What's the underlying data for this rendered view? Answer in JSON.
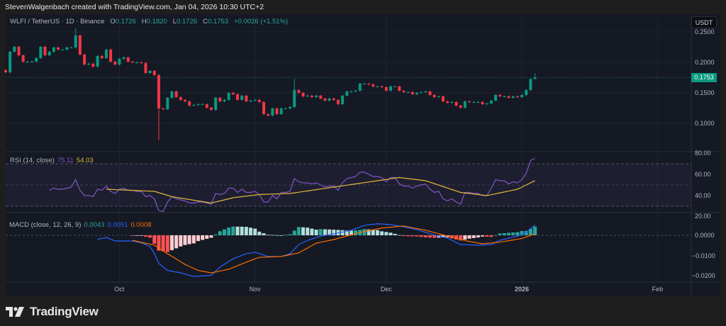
{
  "credit": "StevenWalgenbach created with TradingView.com, Jan 04, 2026 10:30 UTC+2",
  "symbol_title": "WLFI / TetherUS · 1D · Binance",
  "ohlc": {
    "o_label": "O",
    "o": "0.1726",
    "h_label": "H",
    "h": "0.1820",
    "l_label": "L",
    "l": "0.1726",
    "c_label": "C",
    "c": "0.1753",
    "change": "+0.0026 (+1.51%)"
  },
  "currency_button": "USDT",
  "last_price_label": "0.1753",
  "rsi_legend": {
    "label": "RSI (14, close)",
    "value": "75.11",
    "ma_value": "54.03"
  },
  "macd_legend": {
    "label": "MACD (close, 12, 26, 9)",
    "hist": "0.0043",
    "macd": "0.0051",
    "signal": "0.0008"
  },
  "logo_text": "TradingView",
  "colors": {
    "up": "#089981",
    "down": "#f23645",
    "rsi": "#7e57c2",
    "rsi_ma": "#e0b63a",
    "macd": "#2962ff",
    "signal": "#ff6d00",
    "hist_up_strong": "#26a69a",
    "hist_up_weak": "#b2dfdb",
    "hist_down_strong": "#ff5252",
    "hist_down_weak": "#ffcdd2"
  },
  "chart_data": [
    {
      "type": "candlestick",
      "interval": "1D",
      "start_date": "2025-09-05",
      "first_open": 0.187,
      "closes": [
        0.1837,
        0.2174,
        0.2256,
        0.2116,
        0.2012,
        0.2012,
        0.2012,
        0.207,
        0.2256,
        0.2116,
        0.2174,
        0.2244,
        0.2209,
        0.2209,
        0.2244,
        0.2244,
        0.2442,
        0.2128,
        0.1965,
        0.1977,
        0.193,
        0.2105,
        0.207,
        0.2209,
        0.2012,
        0.1965,
        0.2058,
        0.2081,
        0.2012,
        0.2,
        0.2,
        0.1988,
        0.1826,
        0.186,
        0.1791,
        0.1244,
        0.1232,
        0.1419,
        0.1523,
        0.143,
        0.1384,
        0.136,
        0.1291,
        0.1302,
        0.1314,
        0.1314,
        0.1256,
        0.1221,
        0.1419,
        0.136,
        0.1384,
        0.15,
        0.1477,
        0.1384,
        0.1453,
        0.136,
        0.1372,
        0.1384,
        0.1349,
        0.1151,
        0.1128,
        0.1244,
        0.1151,
        0.1244,
        0.1244,
        0.1267,
        0.1546,
        0.15,
        0.1442,
        0.1453,
        0.143,
        0.1453,
        0.1407,
        0.1372,
        0.1407,
        0.1384,
        0.1314,
        0.1453,
        0.1523,
        0.1523,
        0.1535,
        0.1651,
        0.1651,
        0.1639,
        0.1605,
        0.1605,
        0.1593,
        0.1535,
        0.1605,
        0.1605,
        0.1535,
        0.1512,
        0.1512,
        0.1477,
        0.15,
        0.1512,
        0.1523,
        0.1465,
        0.143,
        0.1442,
        0.136,
        0.1337,
        0.1349,
        0.1291,
        0.1256,
        0.136,
        0.1349,
        0.1349,
        0.1349,
        0.1314,
        0.1326,
        0.1372,
        0.1465,
        0.1442,
        0.1442,
        0.1419,
        0.1442,
        0.143,
        0.1465,
        0.1546,
        0.1726,
        0.1753
      ],
      "extremes": [
        {
          "date": "2025-09-21",
          "high": 0.2558
        },
        {
          "date": "2025-10-10",
          "low": 0.072
        },
        {
          "date": "2025-11-10",
          "high": 0.1733
        },
        {
          "date": "2026-01-04",
          "high": 0.182,
          "low": 0.1726
        }
      ],
      "ylim": [
        0.08,
        0.26
      ],
      "y_ticks": [
        "0.2500",
        "0.2000",
        "0.1500",
        "0.1000"
      ],
      "last_price": 0.1753,
      "x_ticks": [
        {
          "label": "Oct",
          "date": "2025-10-01"
        },
        {
          "label": "Nov",
          "date": "2025-11-01"
        },
        {
          "label": "Dec",
          "date": "2025-12-01"
        },
        {
          "label": "2026",
          "date": "2026-01-01"
        },
        {
          "label": "Feb",
          "date": "2026-02-01"
        }
      ],
      "grid": true
    },
    {
      "type": "line",
      "name": "RSI (14, close)",
      "ylim": [
        20,
        80
      ],
      "y_ticks": [
        "80.00",
        "60.00",
        "40.00",
        "20.00"
      ],
      "bands": {
        "upper": 70,
        "middle": 50,
        "lower": 30
      },
      "rsi_start_date": "2025-09-15",
      "rsi": [
        45,
        47,
        46,
        46,
        47,
        48,
        55,
        45,
        40,
        40,
        39,
        46,
        45,
        49,
        44,
        42,
        46,
        47,
        45,
        45,
        44,
        44,
        39,
        40,
        37,
        26,
        25,
        34,
        39,
        37,
        36,
        35,
        33,
        33,
        34,
        34,
        33,
        32,
        42,
        41,
        42,
        47,
        47,
        43,
        46,
        43,
        43,
        44,
        41,
        34,
        34,
        40,
        37,
        43,
        43,
        44,
        56,
        53,
        52,
        52,
        51,
        52,
        50,
        48,
        49,
        49,
        45,
        52,
        56,
        57,
        58,
        62,
        62,
        60,
        58,
        58,
        57,
        53,
        57,
        57,
        51,
        49,
        49,
        47,
        49,
        50,
        51,
        46,
        43,
        44,
        37,
        35,
        37,
        34,
        32,
        43,
        43,
        42,
        42,
        40,
        40,
        47,
        55,
        54,
        54,
        51,
        53,
        52,
        55,
        61,
        73,
        75.11
      ],
      "rsi_ma": [
        [
          "2025-09-28",
          46
        ],
        [
          "2025-10-09",
          44
        ],
        [
          "2025-10-13",
          39
        ],
        [
          "2025-10-22",
          33
        ],
        [
          "2025-10-27",
          38
        ],
        [
          "2025-11-02",
          41
        ],
        [
          "2025-11-09",
          42
        ],
        [
          "2025-11-24",
          51
        ],
        [
          "2025-12-04",
          57
        ],
        [
          "2025-12-10",
          54
        ],
        [
          "2025-12-18",
          43
        ],
        [
          "2025-12-24",
          40
        ],
        [
          "2025-12-31",
          46
        ],
        [
          "2026-01-04",
          54.03
        ]
      ]
    },
    {
      "type": "line",
      "name": "MACD (close, 12, 26, 9)",
      "ylim": [
        -0.023,
        0.0115
      ],
      "y_ticks": [
        {
          "label": "0.0000",
          "value": 0
        },
        {
          "label": "−0.0100",
          "value": -0.01
        },
        {
          "label": "−0.0200",
          "value": -0.02
        }
      ],
      "macd": [
        [
          "2025-09-26",
          -0.002
        ],
        [
          "2025-09-28",
          -0.0011
        ],
        [
          "2025-09-30",
          -0.0028
        ],
        [
          "2025-10-04",
          -0.0028
        ],
        [
          "2025-10-06",
          -0.0037
        ],
        [
          "2025-10-08",
          -0.0056
        ],
        [
          "2025-10-09",
          -0.0091
        ],
        [
          "2025-10-10",
          -0.0139
        ],
        [
          "2025-10-12",
          -0.0174
        ],
        [
          "2025-10-15",
          -0.0186
        ],
        [
          "2025-10-18",
          -0.0204
        ],
        [
          "2025-10-22",
          -0.0198
        ],
        [
          "2025-10-24",
          -0.0157
        ],
        [
          "2025-10-27",
          -0.0116
        ],
        [
          "2025-10-30",
          -0.0091
        ],
        [
          "2025-11-01",
          -0.0084
        ],
        [
          "2025-11-04",
          -0.0105
        ],
        [
          "2025-11-07",
          -0.0105
        ],
        [
          "2025-11-09",
          -0.0091
        ],
        [
          "2025-11-11",
          -0.0046
        ],
        [
          "2025-11-13",
          -0.0025
        ],
        [
          "2025-11-15",
          -0.0011
        ],
        [
          "2025-11-16",
          -0.0004
        ],
        [
          "2025-11-19",
          0.0007
        ],
        [
          "2025-11-23",
          0.0025
        ],
        [
          "2025-11-26",
          0.0049
        ],
        [
          "2025-11-29",
          0.0057
        ],
        [
          "2025-12-02",
          0.0053
        ],
        [
          "2025-12-05",
          0.0042
        ],
        [
          "2025-12-08",
          0.0028
        ],
        [
          "2025-12-12",
          0.0001
        ],
        [
          "2025-12-15",
          -0.0014
        ],
        [
          "2025-12-18",
          -0.0046
        ],
        [
          "2025-12-22",
          -0.0049
        ],
        [
          "2025-12-25",
          -0.0046
        ],
        [
          "2025-12-27",
          -0.0025
        ],
        [
          "2025-12-31",
          -0.0004
        ],
        [
          "2026-01-02",
          0.0014
        ],
        [
          "2026-01-04",
          0.0051
        ]
      ],
      "signal": [
        [
          "2025-10-04",
          -0.0025
        ],
        [
          "2025-10-09",
          -0.0049
        ],
        [
          "2025-10-12",
          -0.0091
        ],
        [
          "2025-10-16",
          -0.0144
        ],
        [
          "2025-10-19",
          -0.0174
        ],
        [
          "2025-10-22",
          -0.0186
        ],
        [
          "2025-10-26",
          -0.0168
        ],
        [
          "2025-10-30",
          -0.0133
        ],
        [
          "2025-11-02",
          -0.0109
        ],
        [
          "2025-11-07",
          -0.0105
        ],
        [
          "2025-11-11",
          -0.0087
        ],
        [
          "2025-11-15",
          -0.0039
        ],
        [
          "2025-11-19",
          -0.0021
        ],
        [
          "2025-11-25",
          0.0014
        ],
        [
          "2025-11-30",
          0.0036
        ],
        [
          "2025-12-05",
          0.0046
        ],
        [
          "2025-12-10",
          0.0025
        ],
        [
          "2025-12-15",
          -0.0004
        ],
        [
          "2025-12-20",
          -0.0031
        ],
        [
          "2025-12-23",
          -0.0042
        ],
        [
          "2025-12-27",
          -0.0034
        ],
        [
          "2026-01-01",
          -0.0016
        ],
        [
          "2026-01-04",
          0.0008
        ]
      ]
    }
  ]
}
